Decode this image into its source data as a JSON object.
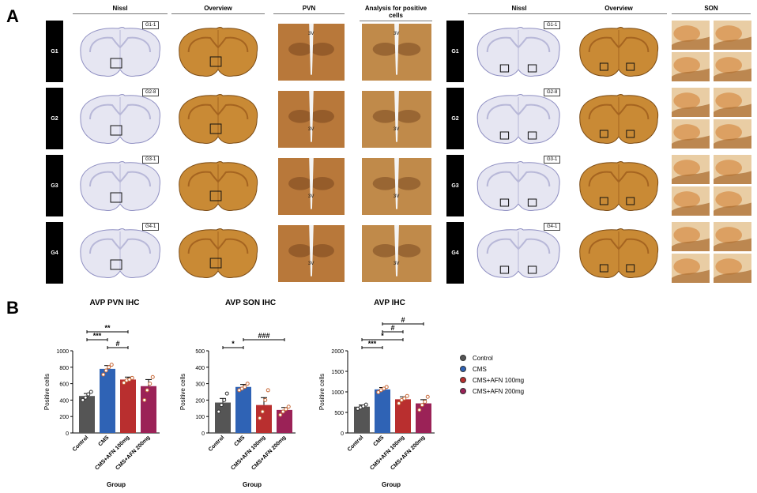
{
  "panelA": {
    "letter": "A",
    "left_columns": [
      "Nissl",
      "Overview",
      "PVN",
      "Analysis for positive cells"
    ],
    "right_columns": [
      "Nissl",
      "Overview",
      "SON"
    ],
    "groups": [
      "G1",
      "G2",
      "G3",
      "G4"
    ],
    "left_tags": [
      "G1-1",
      "G2-8",
      "G3-1",
      "G4-1"
    ],
    "right_tags": [
      "G1-1",
      "G2-8",
      "G3-1",
      "G4-1"
    ],
    "third_ventricle_label": "3V"
  },
  "panelB": {
    "letter": "B",
    "legend": [
      {
        "label": "Control",
        "color": "#555555"
      },
      {
        "label": "CMS",
        "color": "#2f63b5"
      },
      {
        "label": "CMS+AFN 100mg",
        "color": "#b92f2f"
      },
      {
        "label": "CMS+AFN 200mg",
        "color": "#9b2257"
      }
    ]
  },
  "chart_data": [
    {
      "type": "bar",
      "title": "AVP PVN IHC",
      "ylabel": "Positive cells",
      "xlabel": "Group",
      "categories": [
        "Control",
        "CMS",
        "CMS+AFN 100mg",
        "CMS+AFN 200mg"
      ],
      "values": [
        450,
        780,
        650,
        570
      ],
      "errors": [
        30,
        40,
        30,
        80
      ],
      "points": [
        [
          400,
          430,
          470,
          500
        ],
        [
          710,
          760,
          800,
          830
        ],
        [
          610,
          640,
          650,
          670
        ],
        [
          400,
          520,
          600,
          680
        ]
      ],
      "ylim": [
        0,
        1000
      ],
      "yticks": [
        0,
        200,
        400,
        600,
        800,
        1000
      ],
      "significance": [
        {
          "from": 0,
          "to": 1,
          "label": "***",
          "level": 1
        },
        {
          "from": 0,
          "to": 2,
          "label": "**",
          "level": 2
        },
        {
          "from": 1,
          "to": 2,
          "label": "#",
          "level": 0
        }
      ]
    },
    {
      "type": "bar",
      "title": "AVP SON IHC",
      "ylabel": "Positive cells",
      "xlabel": "Group",
      "categories": [
        "Control",
        "CMS",
        "CMS+AFN 100mg",
        "CMS+AFN 200mg"
      ],
      "values": [
        185,
        280,
        170,
        140
      ],
      "errors": [
        25,
        15,
        45,
        15
      ],
      "points": [
        [
          130,
          170,
          200,
          240
        ],
        [
          260,
          270,
          280,
          300
        ],
        [
          90,
          130,
          200,
          260
        ],
        [
          110,
          130,
          145,
          160
        ]
      ],
      "ylim": [
        0,
        500
      ],
      "yticks": [
        0,
        100,
        200,
        300,
        400,
        500
      ],
      "significance": [
        {
          "from": 0,
          "to": 1,
          "label": "*",
          "level": 0
        },
        {
          "from": 1,
          "to": 3,
          "label": "###",
          "level": 1
        }
      ]
    },
    {
      "type": "bar",
      "title": "AVP IHC",
      "ylabel": "Positive cells",
      "xlabel": "Group",
      "categories": [
        "Control",
        "CMS",
        "CMS+AFN 100mg",
        "CMS+AFN 200mg"
      ],
      "values": [
        640,
        1060,
        820,
        720
      ],
      "errors": [
        40,
        45,
        60,
        90
      ],
      "points": [
        [
          590,
          620,
          650,
          690
        ],
        [
          990,
          1040,
          1080,
          1120
        ],
        [
          720,
          800,
          840,
          900
        ],
        [
          560,
          680,
          760,
          880
        ]
      ],
      "ylim": [
        0,
        2000
      ],
      "yticks": [
        0,
        500,
        1000,
        1500,
        2000
      ],
      "significance": [
        {
          "from": 0,
          "to": 1,
          "label": "***",
          "level": 0
        },
        {
          "from": 0,
          "to": 2,
          "label": "*",
          "level": 1
        },
        {
          "from": 1,
          "to": 2,
          "label": "#",
          "level": 2
        },
        {
          "from": 1,
          "to": 3,
          "label": "#",
          "level": 3
        }
      ]
    }
  ]
}
